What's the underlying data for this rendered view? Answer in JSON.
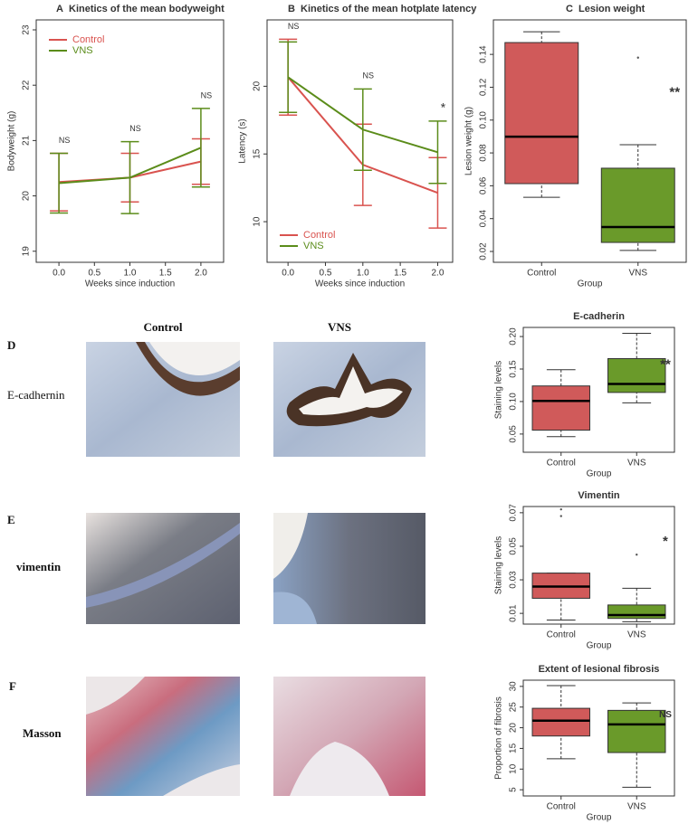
{
  "chart_data": [
    {
      "type": "line",
      "panel": "A",
      "title": "Kinetics of the mean bodyweight",
      "xlabel": "Weeks since induction",
      "ylabel": "Bodyweight (g)",
      "x": [
        0,
        1,
        2
      ],
      "series": [
        {
          "name": "Control",
          "color": "#d9534f",
          "values": [
            20.25,
            20.33,
            20.62
          ],
          "errors": [
            0.52,
            0.44,
            0.41
          ]
        },
        {
          "name": "VNS",
          "color": "#5b8c1a",
          "values": [
            20.23,
            20.33,
            20.87
          ],
          "errors": [
            0.54,
            0.65,
            0.71
          ]
        }
      ],
      "annotations": [
        "NS",
        "NS",
        "NS"
      ],
      "xlim": [
        -0.32,
        2.32
      ],
      "ylim": [
        18.8,
        23.18
      ],
      "xticks": [
        {
          "value": 0,
          "label": "0.0"
        },
        0.5,
        {
          "value": 1,
          "label": "1.0"
        },
        1.5,
        {
          "value": 2,
          "label": "2.0"
        }
      ],
      "yticks": [
        19,
        20,
        21,
        22,
        23
      ],
      "legend": "upper left"
    },
    {
      "type": "line",
      "panel": "B",
      "title": "Kinetics of the mean hotplate latency",
      "xlabel": "Weeks since induction",
      "ylabel": "Latency (s)",
      "x": [
        0,
        1,
        2
      ],
      "series": [
        {
          "name": "Control",
          "color": "#d9534f",
          "values": [
            20.67,
            14.2,
            12.13
          ],
          "errors": [
            2.8,
            3.0,
            2.6
          ]
        },
        {
          "name": "VNS",
          "color": "#5b8c1a",
          "values": [
            20.67,
            16.8,
            15.13
          ],
          "errors": [
            2.6,
            3.0,
            2.3
          ]
        }
      ],
      "annotations": [
        "NS",
        "NS",
        "*"
      ],
      "xlim": [
        -0.28,
        2.2
      ],
      "ylim": [
        7,
        24.9
      ],
      "xticks": [
        {
          "value": 0,
          "label": "0.0"
        },
        0.5,
        {
          "value": 1,
          "label": "1.0"
        },
        1.5,
        {
          "value": 2,
          "label": "2.0"
        }
      ],
      "yticks": [
        10,
        15,
        20
      ],
      "legend": "lower left"
    },
    {
      "type": "box",
      "panel": "C",
      "title": "Lesion weight",
      "xlabel": "Group",
      "ylabel": "Lesion weight (g)",
      "categories": [
        "Control",
        "VNS"
      ],
      "colors": [
        "#d05a5a",
        "#6a9a2a"
      ],
      "boxes": [
        {
          "min": 0.053,
          "q1": 0.0613,
          "median": 0.0899,
          "q3": 0.1472,
          "max": 0.1538,
          "outliers": []
        },
        {
          "min": 0.0206,
          "q1": 0.0255,
          "median": 0.0349,
          "q3": 0.0707,
          "max": 0.085,
          "outliers": [
            0.138
          ]
        }
      ],
      "annotation": "**",
      "ylim": [
        0.0134,
        0.161
      ],
      "yticks": [
        0.02,
        0.04,
        0.06,
        0.08,
        {
          "value": 0.1,
          "label": "0.10"
        },
        0.12,
        0.14
      ]
    },
    {
      "type": "box",
      "title": "E-cadherin",
      "xlabel": "Group",
      "ylabel": "Staining levels",
      "categories": [
        "Control",
        "VNS"
      ],
      "colors": [
        "#d05a5a",
        "#6a9a2a"
      ],
      "boxes": [
        {
          "min": 0.046,
          "q1": 0.056,
          "median": 0.101,
          "q3": 0.124,
          "max": 0.149,
          "outliers": []
        },
        {
          "min": 0.098,
          "q1": 0.114,
          "median": 0.127,
          "q3": 0.166,
          "max": 0.205,
          "outliers": []
        }
      ],
      "annotation": "**",
      "ylim": [
        0.022,
        0.214
      ],
      "yticks": [
        0.05,
        {
          "value": 0.1,
          "label": "0.10"
        },
        0.15,
        {
          "value": 0.2,
          "label": "0.20"
        }
      ]
    },
    {
      "type": "box",
      "title": "Vimentin",
      "xlabel": "Group",
      "ylabel": "Staining levels",
      "categories": [
        "Control",
        "VNS"
      ],
      "colors": [
        "#d05a5a",
        "#6a9a2a"
      ],
      "boxes": [
        {
          "min": 0.006,
          "q1": 0.019,
          "median": 0.026,
          "q3": 0.034,
          "max": 0.034,
          "outliers": [
            0.068,
            0.072
          ]
        },
        {
          "min": 0.005,
          "q1": 0.007,
          "median": 0.009,
          "q3": 0.015,
          "max": 0.025,
          "outliers": [
            0.045
          ]
        }
      ],
      "annotation": "*",
      "ylim": [
        0.0036,
        0.0737
      ],
      "yticks": [
        0.01,
        0.03,
        0.05,
        0.07
      ]
    },
    {
      "type": "box",
      "title": "Extent of lesional fibrosis",
      "xlabel": "Group",
      "ylabel": "Proportion of fibrosis",
      "categories": [
        "Control",
        "VNS"
      ],
      "colors": [
        "#d05a5a",
        "#6a9a2a"
      ],
      "boxes": [
        {
          "min": 12.5,
          "q1": 18,
          "median": 21.7,
          "q3": 24.7,
          "max": 30.2,
          "outliers": []
        },
        {
          "min": 5.6,
          "q1": 14,
          "median": 20.8,
          "q3": 24.2,
          "max": 26,
          "outliers": []
        }
      ],
      "annotation": "NS",
      "ylim": [
        3.5,
        31.5
      ],
      "yticks": [
        5,
        10,
        15,
        20,
        25,
        30
      ]
    }
  ],
  "histology": {
    "columns": [
      "Control",
      "VNS"
    ],
    "rows": [
      {
        "panel": "D",
        "stain": "E-cadhernin"
      },
      {
        "panel": "E",
        "stain": "vimentin"
      },
      {
        "panel": "F",
        "stain": "Masson"
      }
    ]
  }
}
